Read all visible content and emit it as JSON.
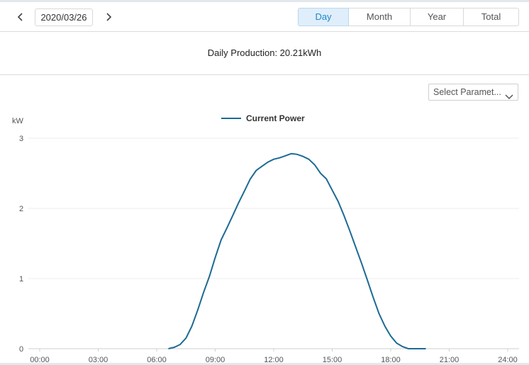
{
  "toolbar": {
    "date": "2020/03/26",
    "tabs": [
      "Day",
      "Month",
      "Year",
      "Total"
    ],
    "active_tab": "Day"
  },
  "summary": {
    "text": "Daily Production: 20.21kWh"
  },
  "parameter_select": {
    "value": "Select Paramet..."
  },
  "colors": {
    "line": "#1d6a94",
    "active_tab_bg": "#dfeefa",
    "active_tab_text": "#1f88c8"
  },
  "chart_data": {
    "type": "line",
    "ylabel": "kW",
    "ylim": [
      0,
      3
    ],
    "yticks": [
      "0",
      "1",
      "2",
      "3"
    ],
    "xlim": [
      0,
      24
    ],
    "xticks": [
      "00:00",
      "03:00",
      "06:00",
      "09:00",
      "12:00",
      "15:00",
      "18:00",
      "21:00",
      "24:00"
    ],
    "grid": true,
    "legend_position": "top-center",
    "series": [
      {
        "name": "Current Power",
        "x": [
          6.6,
          6.9,
          7.2,
          7.5,
          7.8,
          8.1,
          8.4,
          8.7,
          9.0,
          9.3,
          9.6,
          9.9,
          10.2,
          10.5,
          10.8,
          11.1,
          11.4,
          11.7,
          12.0,
          12.3,
          12.6,
          12.9,
          13.2,
          13.5,
          13.8,
          14.1,
          14.4,
          14.7,
          15.0,
          15.3,
          15.6,
          15.9,
          16.2,
          16.5,
          16.8,
          17.1,
          17.4,
          17.7,
          18.0,
          18.3,
          18.6,
          18.9,
          19.2,
          19.5,
          19.8
        ],
        "y": [
          0.0,
          0.02,
          0.06,
          0.15,
          0.32,
          0.55,
          0.8,
          1.03,
          1.3,
          1.55,
          1.72,
          1.9,
          2.08,
          2.25,
          2.42,
          2.54,
          2.6,
          2.66,
          2.7,
          2.72,
          2.75,
          2.78,
          2.77,
          2.74,
          2.7,
          2.62,
          2.5,
          2.42,
          2.26,
          2.1,
          1.9,
          1.68,
          1.45,
          1.22,
          0.98,
          0.73,
          0.5,
          0.32,
          0.18,
          0.08,
          0.03,
          0.0,
          0.0,
          0.0,
          0.0
        ]
      }
    ]
  }
}
